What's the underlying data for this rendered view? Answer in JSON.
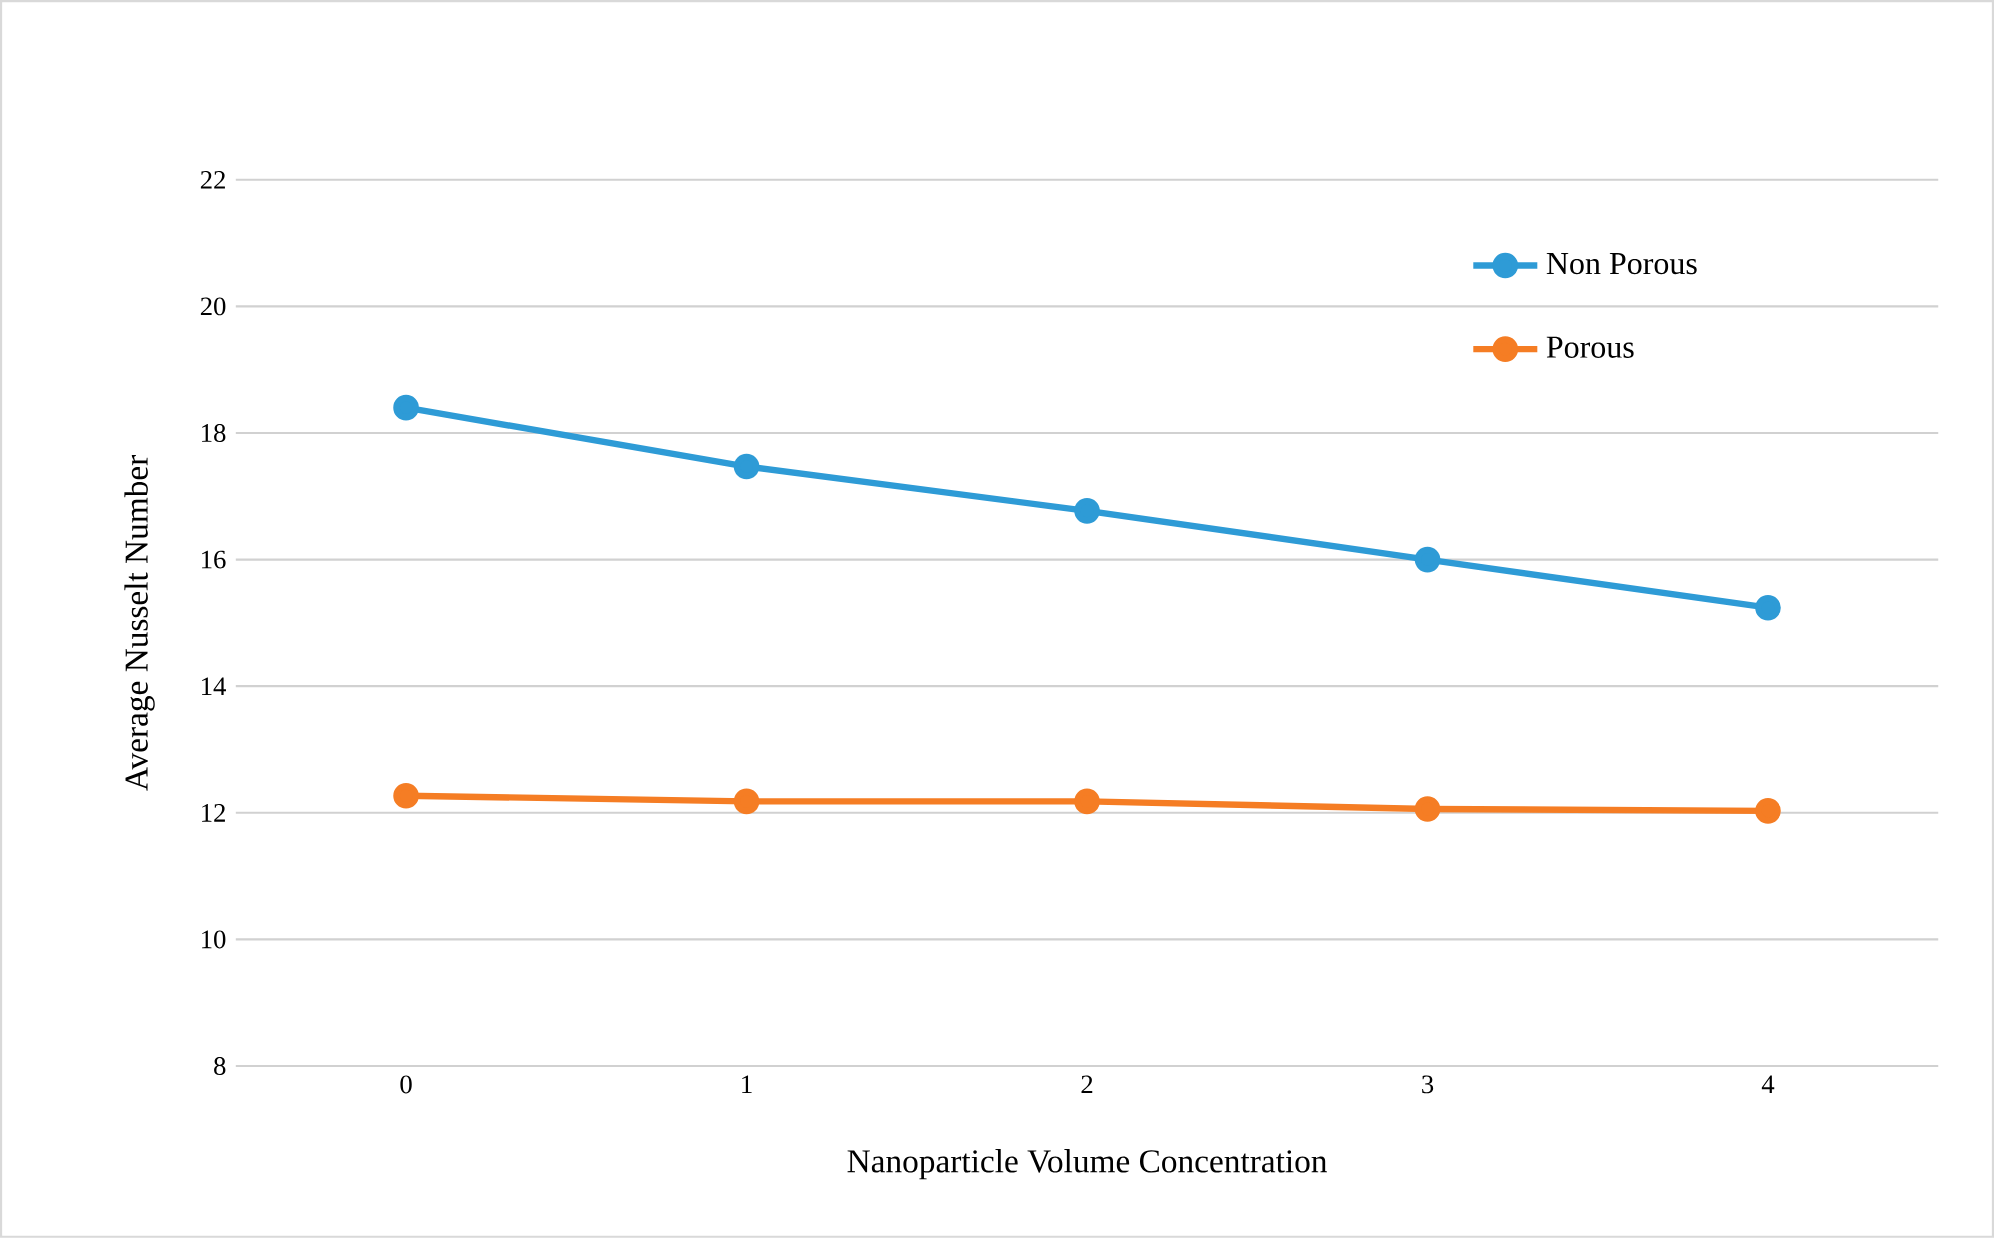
{
  "chart_data": {
    "type": "line",
    "xlabel": "Nanoparticle Volume Concentration",
    "ylabel": "Average Nusselt Number",
    "categories": [
      "0",
      "1",
      "2",
      "3",
      "4"
    ],
    "series": [
      {
        "name": "Non Porous",
        "color": "#2e9bd6",
        "values": [
          18.4,
          17.47,
          16.77,
          16.0,
          15.24
        ]
      },
      {
        "name": "Porous",
        "color": "#f57d24",
        "values": [
          12.27,
          12.18,
          12.18,
          12.06,
          12.03
        ]
      }
    ],
    "ylim": [
      8,
      22
    ],
    "yticks": [
      8,
      10,
      12,
      14,
      16,
      18,
      20,
      22
    ],
    "grid": "y",
    "legend": "top right",
    "marker": "circle",
    "line_style": "solid"
  }
}
